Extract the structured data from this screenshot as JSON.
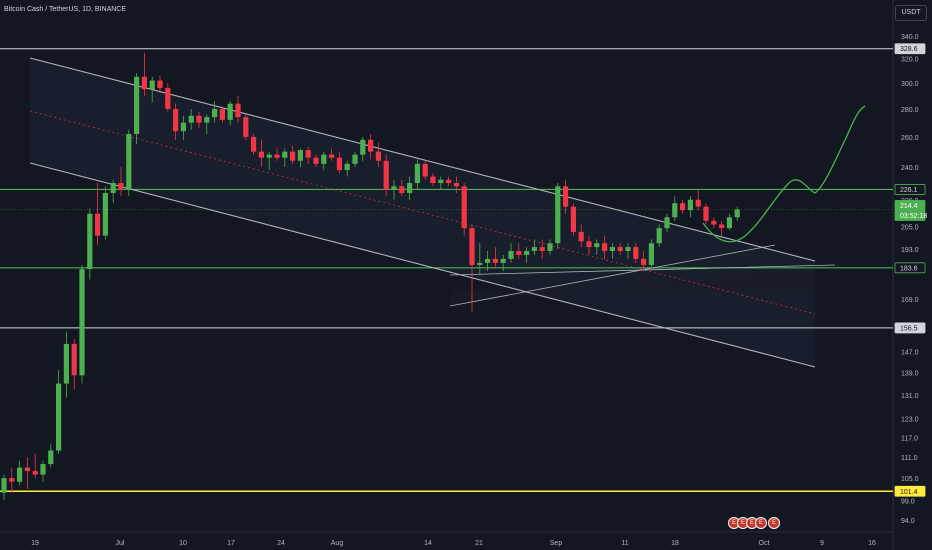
{
  "header": {
    "symbol": "Bitcoin Cash / TetherUS, 1D, BINANCE"
  },
  "currency_button": "USDT",
  "events": {
    "group_label": "E",
    "single_label": "E"
  },
  "colors": {
    "background": "#131722",
    "up": "#4caf50",
    "down": "#f23645",
    "channel": "#b2b5be",
    "level_line": "#d1d4dc",
    "green_level": "#4caf50",
    "yellow_level": "#ffeb3b",
    "projection": "#4caf50"
  },
  "chart_data": {
    "type": "candlestick",
    "x_ticks": [
      "19",
      "Jul",
      "10",
      "17",
      "24",
      "Aug",
      "14",
      "21",
      "Sep",
      "11",
      "18",
      "Oct",
      "9",
      "16"
    ],
    "y_ticks": [
      94.0,
      99.0,
      105.0,
      111.0,
      117.0,
      123.0,
      131.0,
      139.0,
      147.0,
      156.5,
      169.0,
      183.6,
      193.0,
      205.0,
      214.4,
      220.0,
      226.1,
      240.0,
      260.0,
      280.0,
      300.0,
      320.0,
      328.6,
      340.0
    ],
    "y_axis_labels": [
      "94.0",
      "99.0",
      "105.0",
      "111.0",
      "117.0",
      "123.0",
      "131.0",
      "139.0",
      "147.0",
      "169.0",
      "193.0",
      "205.0",
      "220.0",
      "240.0",
      "260.0",
      "280.0",
      "300.0",
      "320.0",
      "340.0"
    ],
    "price_labels": [
      {
        "text": "328.6",
        "value": 328.6,
        "style": "white"
      },
      {
        "text": "226.1",
        "value": 226.1,
        "style": "green"
      },
      {
        "text": "214.4",
        "value": 214.4,
        "style": "green-fill"
      },
      {
        "text": "03:52:18",
        "value": 214.4,
        "style": "timer"
      },
      {
        "text": "183.6",
        "value": 183.6,
        "style": "green"
      },
      {
        "text": "156.5",
        "value": 156.5,
        "style": "white"
      },
      {
        "text": "101.4",
        "value": 101.4,
        "style": "yellow"
      }
    ],
    "y_range": [
      91,
      350
    ],
    "scale": "log",
    "horizontal_levels": [
      328.6,
      226.1,
      183.6,
      156.5,
      101.4
    ],
    "candles": [
      {
        "o": 101,
        "h": 106,
        "l": 99,
        "c": 105
      },
      {
        "o": 105,
        "h": 108,
        "l": 101,
        "c": 104
      },
      {
        "o": 104,
        "h": 110,
        "l": 103,
        "c": 108
      },
      {
        "o": 108,
        "h": 111,
        "l": 102,
        "c": 107
      },
      {
        "o": 107,
        "h": 112,
        "l": 105,
        "c": 106
      },
      {
        "o": 106,
        "h": 110,
        "l": 104,
        "c": 109
      },
      {
        "o": 109,
        "h": 115,
        "l": 108,
        "c": 113
      },
      {
        "o": 113,
        "h": 140,
        "l": 112,
        "c": 135
      },
      {
        "o": 135,
        "h": 155,
        "l": 130,
        "c": 150
      },
      {
        "o": 150,
        "h": 152,
        "l": 133,
        "c": 138
      },
      {
        "o": 138,
        "h": 185,
        "l": 135,
        "c": 183
      },
      {
        "o": 183,
        "h": 215,
        "l": 178,
        "c": 212
      },
      {
        "o": 212,
        "h": 230,
        "l": 195,
        "c": 200
      },
      {
        "o": 200,
        "h": 228,
        "l": 198,
        "c": 224
      },
      {
        "o": 224,
        "h": 232,
        "l": 218,
        "c": 230
      },
      {
        "o": 230,
        "h": 240,
        "l": 222,
        "c": 226
      },
      {
        "o": 226,
        "h": 265,
        "l": 222,
        "c": 262
      },
      {
        "o": 262,
        "h": 308,
        "l": 255,
        "c": 305
      },
      {
        "o": 305,
        "h": 325,
        "l": 290,
        "c": 295
      },
      {
        "o": 295,
        "h": 305,
        "l": 285,
        "c": 302
      },
      {
        "o": 302,
        "h": 306,
        "l": 292,
        "c": 296
      },
      {
        "o": 296,
        "h": 300,
        "l": 278,
        "c": 280
      },
      {
        "o": 280,
        "h": 284,
        "l": 258,
        "c": 264
      },
      {
        "o": 264,
        "h": 275,
        "l": 258,
        "c": 270
      },
      {
        "o": 270,
        "h": 280,
        "l": 265,
        "c": 275
      },
      {
        "o": 275,
        "h": 278,
        "l": 266,
        "c": 270
      },
      {
        "o": 270,
        "h": 276,
        "l": 262,
        "c": 274
      },
      {
        "o": 274,
        "h": 286,
        "l": 270,
        "c": 280
      },
      {
        "o": 280,
        "h": 282,
        "l": 270,
        "c": 272
      },
      {
        "o": 272,
        "h": 286,
        "l": 268,
        "c": 284
      },
      {
        "o": 284,
        "h": 290,
        "l": 270,
        "c": 274
      },
      {
        "o": 274,
        "h": 276,
        "l": 258,
        "c": 260
      },
      {
        "o": 260,
        "h": 262,
        "l": 248,
        "c": 250
      },
      {
        "o": 250,
        "h": 258,
        "l": 240,
        "c": 246
      },
      {
        "o": 246,
        "h": 250,
        "l": 238,
        "c": 248
      },
      {
        "o": 248,
        "h": 252,
        "l": 244,
        "c": 246
      },
      {
        "o": 246,
        "h": 252,
        "l": 240,
        "c": 250
      },
      {
        "o": 250,
        "h": 254,
        "l": 242,
        "c": 244
      },
      {
        "o": 244,
        "h": 252,
        "l": 240,
        "c": 251
      },
      {
        "o": 251,
        "h": 253,
        "l": 242,
        "c": 246
      },
      {
        "o": 246,
        "h": 248,
        "l": 240,
        "c": 242
      },
      {
        "o": 242,
        "h": 250,
        "l": 238,
        "c": 248
      },
      {
        "o": 248,
        "h": 252,
        "l": 244,
        "c": 246
      },
      {
        "o": 246,
        "h": 250,
        "l": 236,
        "c": 238
      },
      {
        "o": 238,
        "h": 244,
        "l": 234,
        "c": 242
      },
      {
        "o": 242,
        "h": 250,
        "l": 240,
        "c": 248
      },
      {
        "o": 248,
        "h": 260,
        "l": 244,
        "c": 258
      },
      {
        "o": 258,
        "h": 262,
        "l": 245,
        "c": 250
      },
      {
        "o": 250,
        "h": 256,
        "l": 240,
        "c": 244
      },
      {
        "o": 244,
        "h": 248,
        "l": 222,
        "c": 226
      },
      {
        "o": 226,
        "h": 232,
        "l": 220,
        "c": 228
      },
      {
        "o": 228,
        "h": 232,
        "l": 222,
        "c": 224
      },
      {
        "o": 224,
        "h": 234,
        "l": 220,
        "c": 230
      },
      {
        "o": 230,
        "h": 245,
        "l": 226,
        "c": 242
      },
      {
        "o": 242,
        "h": 244,
        "l": 232,
        "c": 234
      },
      {
        "o": 234,
        "h": 236,
        "l": 228,
        "c": 230
      },
      {
        "o": 230,
        "h": 234,
        "l": 226,
        "c": 232
      },
      {
        "o": 232,
        "h": 234,
        "l": 228,
        "c": 230
      },
      {
        "o": 230,
        "h": 234,
        "l": 224,
        "c": 228
      },
      {
        "o": 228,
        "h": 230,
        "l": 200,
        "c": 204
      },
      {
        "o": 204,
        "h": 206,
        "l": 163,
        "c": 185
      },
      {
        "o": 185,
        "h": 196,
        "l": 180,
        "c": 186
      },
      {
        "o": 186,
        "h": 192,
        "l": 182,
        "c": 188
      },
      {
        "o": 188,
        "h": 194,
        "l": 184,
        "c": 186
      },
      {
        "o": 186,
        "h": 190,
        "l": 182,
        "c": 188
      },
      {
        "o": 188,
        "h": 196,
        "l": 186,
        "c": 192
      },
      {
        "o": 192,
        "h": 196,
        "l": 188,
        "c": 190
      },
      {
        "o": 190,
        "h": 194,
        "l": 186,
        "c": 192
      },
      {
        "o": 192,
        "h": 198,
        "l": 190,
        "c": 194
      },
      {
        "o": 194,
        "h": 198,
        "l": 188,
        "c": 192
      },
      {
        "o": 192,
        "h": 198,
        "l": 190,
        "c": 196
      },
      {
        "o": 196,
        "h": 230,
        "l": 193,
        "c": 228
      },
      {
        "o": 228,
        "h": 232,
        "l": 212,
        "c": 216
      },
      {
        "o": 216,
        "h": 218,
        "l": 200,
        "c": 202
      },
      {
        "o": 202,
        "h": 206,
        "l": 194,
        "c": 197
      },
      {
        "o": 197,
        "h": 200,
        "l": 190,
        "c": 194
      },
      {
        "o": 194,
        "h": 198,
        "l": 190,
        "c": 196
      },
      {
        "o": 196,
        "h": 200,
        "l": 188,
        "c": 192
      },
      {
        "o": 192,
        "h": 196,
        "l": 188,
        "c": 194
      },
      {
        "o": 194,
        "h": 196,
        "l": 190,
        "c": 192
      },
      {
        "o": 192,
        "h": 196,
        "l": 188,
        "c": 194
      },
      {
        "o": 194,
        "h": 196,
        "l": 186,
        "c": 188
      },
      {
        "o": 188,
        "h": 192,
        "l": 182,
        "c": 185
      },
      {
        "o": 185,
        "h": 198,
        "l": 184,
        "c": 196
      },
      {
        "o": 196,
        "h": 206,
        "l": 194,
        "c": 204
      },
      {
        "o": 204,
        "h": 212,
        "l": 202,
        "c": 210
      },
      {
        "o": 210,
        "h": 222,
        "l": 208,
        "c": 218
      },
      {
        "o": 218,
        "h": 220,
        "l": 212,
        "c": 214
      },
      {
        "o": 214,
        "h": 222,
        "l": 210,
        "c": 220
      },
      {
        "o": 220,
        "h": 226,
        "l": 214,
        "c": 216
      },
      {
        "o": 216,
        "h": 218,
        "l": 206,
        "c": 208
      },
      {
        "o": 208,
        "h": 210,
        "l": 204,
        "c": 206
      },
      {
        "o": 206,
        "h": 208,
        "l": 200,
        "c": 204
      },
      {
        "o": 204,
        "h": 212,
        "l": 203,
        "c": 210
      },
      {
        "o": 210,
        "h": 216,
        "l": 208,
        "c": 214.4
      }
    ]
  }
}
